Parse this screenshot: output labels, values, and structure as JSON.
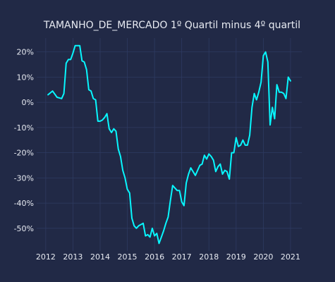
{
  "chart_data": {
    "type": "line",
    "title": "TAMANHO_DE_MERCADO 1º Quartil minus 4º quartil",
    "xlabel": "",
    "ylabel": "",
    "x_ticks": [
      "2012",
      "2013",
      "2014",
      "2015",
      "2016",
      "2017",
      "2018",
      "2019",
      "2020",
      "2021"
    ],
    "y_ticks": [
      "20%",
      "10%",
      "0%",
      "-10%",
      "-20%",
      "-30%",
      "-40%",
      "-50%"
    ],
    "xlim": [
      "2011-09-01",
      "2021-06-01"
    ],
    "ylim": [
      -0.59,
      0.255
    ],
    "grid": true,
    "colors": {
      "background": "#212946",
      "grid": "#2e3a61",
      "line": "#08f7fe",
      "text": "#e8ebf2"
    },
    "series": [
      {
        "x": [
          "2012-02",
          "2012-04",
          "2012-06",
          "2012-08",
          "2012-09",
          "2012-10",
          "2012-11",
          "2012-12",
          "2013-01",
          "2013-02",
          "2013-04",
          "2013-05",
          "2013-06",
          "2013-07",
          "2013-08",
          "2013-09",
          "2013-10",
          "2013-11",
          "2013-12",
          "2014-01",
          "2014-02",
          "2014-03",
          "2014-04",
          "2014-05",
          "2014-06",
          "2014-07",
          "2014-08",
          "2014-09",
          "2014-10",
          "2014-11",
          "2014-12",
          "2015-01",
          "2015-02",
          "2015-03",
          "2015-04",
          "2015-05",
          "2015-06",
          "2015-07",
          "2015-08",
          "2015-09",
          "2015-10",
          "2015-11",
          "2015-12",
          "2016-01",
          "2016-02",
          "2016-03",
          "2016-04",
          "2016-05",
          "2016-06",
          "2016-07",
          "2016-08",
          "2016-09",
          "2016-10",
          "2016-11",
          "2016-12",
          "2017-01",
          "2017-02",
          "2017-03",
          "2017-04",
          "2017-05",
          "2017-06",
          "2017-07",
          "2017-08",
          "2017-09",
          "2017-10",
          "2017-11",
          "2017-12",
          "2018-01",
          "2018-02",
          "2018-03",
          "2018-04",
          "2018-05",
          "2018-06",
          "2018-07",
          "2018-08",
          "2018-09",
          "2018-10",
          "2018-11",
          "2018-12",
          "2019-01",
          "2019-02",
          "2019-03",
          "2019-04",
          "2019-05",
          "2019-06",
          "2019-07",
          "2019-08",
          "2019-09",
          "2019-10",
          "2019-11",
          "2019-12",
          "2020-01",
          "2020-02",
          "2020-03",
          "2020-04",
          "2020-05",
          "2020-06",
          "2020-07",
          "2020-08",
          "2020-09",
          "2020-10",
          "2020-11",
          "2020-12",
          "2021-01"
        ],
        "values": [
          0.03,
          0.045,
          0.02,
          0.015,
          0.035,
          0.155,
          0.17,
          0.17,
          0.195,
          0.225,
          0.225,
          0.165,
          0.16,
          0.13,
          0.05,
          0.045,
          0.015,
          0.01,
          -0.075,
          -0.075,
          -0.07,
          -0.06,
          -0.045,
          -0.105,
          -0.12,
          -0.105,
          -0.115,
          -0.185,
          -0.215,
          -0.27,
          -0.3,
          -0.345,
          -0.36,
          -0.46,
          -0.49,
          -0.5,
          -0.49,
          -0.485,
          -0.48,
          -0.53,
          -0.525,
          -0.535,
          -0.5,
          -0.53,
          -0.52,
          -0.56,
          -0.535,
          -0.51,
          -0.48,
          -0.455,
          -0.39,
          -0.33,
          -0.34,
          -0.35,
          -0.35,
          -0.395,
          -0.41,
          -0.32,
          -0.285,
          -0.26,
          -0.275,
          -0.29,
          -0.27,
          -0.25,
          -0.245,
          -0.21,
          -0.225,
          -0.205,
          -0.215,
          -0.23,
          -0.275,
          -0.255,
          -0.245,
          -0.285,
          -0.27,
          -0.275,
          -0.305,
          -0.2,
          -0.2,
          -0.14,
          -0.175,
          -0.17,
          -0.15,
          -0.17,
          -0.17,
          -0.13,
          -0.02,
          0.035,
          0.01,
          0.04,
          0.08,
          0.185,
          0.2,
          0.16,
          -0.09,
          -0.02,
          -0.065,
          0.07,
          0.04,
          0.04,
          0.035,
          0.015,
          0.1,
          0.085
        ]
      }
    ]
  }
}
